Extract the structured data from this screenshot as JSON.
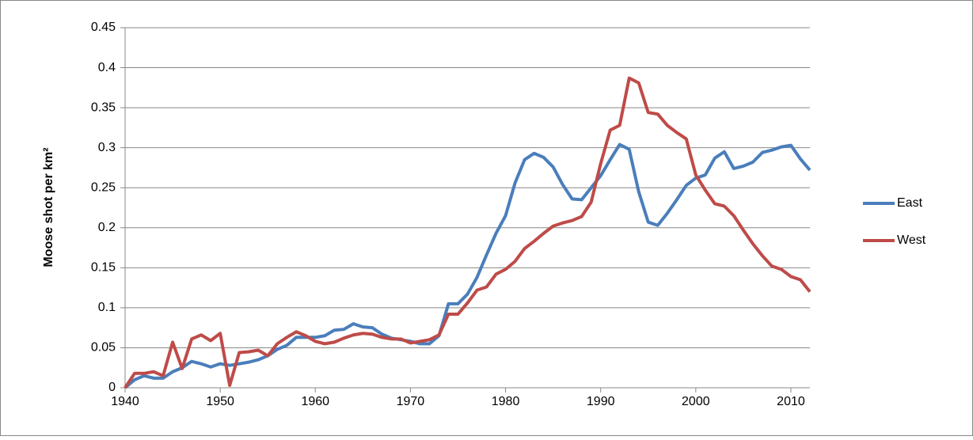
{
  "chart_data": {
    "type": "line",
    "y_label": "Moose shot per km²",
    "x": [
      1940,
      1941,
      1942,
      1943,
      1944,
      1945,
      1946,
      1947,
      1948,
      1949,
      1950,
      1951,
      1952,
      1953,
      1954,
      1955,
      1956,
      1957,
      1958,
      1959,
      1960,
      1961,
      1962,
      1963,
      1964,
      1965,
      1966,
      1967,
      1968,
      1969,
      1970,
      1971,
      1972,
      1973,
      1974,
      1975,
      1976,
      1977,
      1978,
      1979,
      1980,
      1981,
      1982,
      1983,
      1984,
      1985,
      1986,
      1987,
      1988,
      1989,
      1990,
      1991,
      1992,
      1993,
      1994,
      1995,
      1996,
      1997,
      1998,
      1999,
      2000,
      2001,
      2002,
      2003,
      2004,
      2005,
      2006,
      2007,
      2008,
      2009,
      2010,
      2011,
      2012
    ],
    "series": [
      {
        "name": "East",
        "color": "#4a7ebb",
        "values": [
          0,
          0.01,
          0.015,
          0.012,
          0.012,
          0.02,
          0.025,
          0.033,
          0.03,
          0.026,
          0.03,
          0.028,
          0.03,
          0.032,
          0.035,
          0.04,
          0.048,
          0.053,
          0.063,
          0.063,
          0.063,
          0.065,
          0.072,
          0.073,
          0.08,
          0.076,
          0.075,
          0.067,
          0.062,
          0.06,
          0.058,
          0.055,
          0.055,
          0.065,
          0.105,
          0.105,
          0.117,
          0.138,
          0.166,
          0.193,
          0.215,
          0.256,
          0.285,
          0.293,
          0.288,
          0.276,
          0.254,
          0.236,
          0.235,
          0.25,
          0.265,
          0.285,
          0.304,
          0.298,
          0.245,
          0.207,
          0.203,
          0.218,
          0.235,
          0.253,
          0.262,
          0.266,
          0.287,
          0.295,
          0.274,
          0.277,
          0.282,
          0.294,
          0.297,
          0.301,
          0.303,
          0.286,
          0.272
        ]
      },
      {
        "name": "West",
        "color": "#be4b48",
        "values": [
          0,
          0.018,
          0.018,
          0.02,
          0.015,
          0.057,
          0.024,
          0.061,
          0.066,
          0.059,
          0.068,
          0.003,
          0.044,
          0.045,
          0.047,
          0.04,
          0.055,
          0.063,
          0.07,
          0.065,
          0.058,
          0.055,
          0.057,
          0.062,
          0.066,
          0.068,
          0.067,
          0.063,
          0.061,
          0.061,
          0.056,
          0.058,
          0.06,
          0.066,
          0.092,
          0.092,
          0.106,
          0.122,
          0.126,
          0.142,
          0.148,
          0.158,
          0.174,
          0.183,
          0.193,
          0.202,
          0.206,
          0.209,
          0.214,
          0.232,
          0.28,
          0.322,
          0.328,
          0.387,
          0.381,
          0.344,
          0.342,
          0.328,
          0.319,
          0.311,
          0.266,
          0.247,
          0.23,
          0.227,
          0.215,
          0.197,
          0.18,
          0.165,
          0.152,
          0.148,
          0.139,
          0.135,
          0.12
        ]
      }
    ],
    "xlim": [
      1940,
      2012
    ],
    "xticks": [
      1940,
      1950,
      1960,
      1970,
      1980,
      1990,
      2000,
      2010
    ],
    "ylim": [
      0,
      0.45
    ],
    "yticks": [
      0,
      0.05,
      0.1,
      0.15,
      0.2,
      0.25,
      0.3,
      0.35,
      0.4,
      0.45
    ],
    "grid": true,
    "legend": "right"
  }
}
